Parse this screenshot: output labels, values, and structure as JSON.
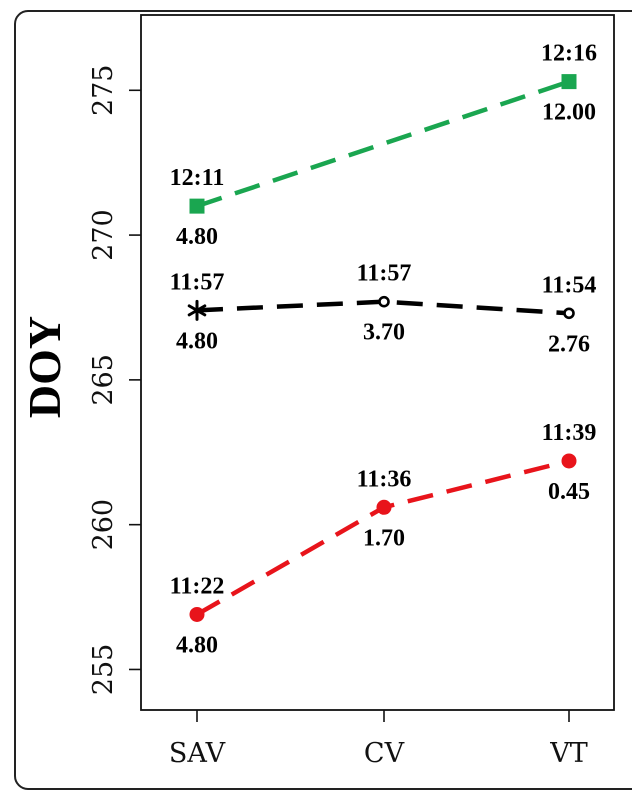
{
  "chart_data": {
    "type": "line",
    "title": "",
    "xlabel": "",
    "ylabel": "DOY",
    "categories": [
      "SAV",
      "CV",
      "VT"
    ],
    "ylim": [
      253.6,
      277.6
    ],
    "yticks": [
      255,
      260,
      265,
      270,
      275
    ],
    "grid": false,
    "series": [
      {
        "color": "#1aa650",
        "marker": "square",
        "values": [
          271.0,
          null,
          275.3
        ],
        "labels_above": [
          "12:11",
          null,
          "12:16"
        ],
        "labels_below": [
          "4.80",
          null,
          "12.00"
        ]
      },
      {
        "color": "#000000",
        "marker": "open-circle",
        "first_marker": "asterisk",
        "values": [
          267.4,
          267.7,
          267.3
        ],
        "labels_above": [
          "11:57",
          "11:57",
          "11:54"
        ],
        "labels_below": [
          "4.80",
          "3.70",
          "2.76"
        ]
      },
      {
        "color": "#e8141b",
        "marker": "filled-circle",
        "values": [
          256.9,
          260.6,
          262.2
        ],
        "labels_above": [
          "11:22",
          "11:36",
          "11:39"
        ],
        "labels_below": [
          "4.80",
          "1.70",
          "0.45"
        ]
      }
    ]
  }
}
